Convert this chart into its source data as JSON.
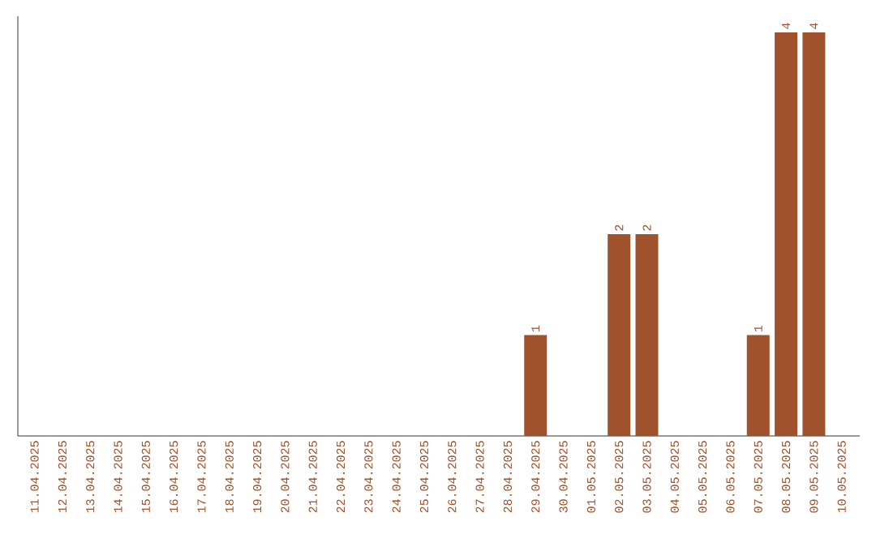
{
  "chart_data": {
    "type": "bar",
    "categories": [
      "11.04.2025",
      "12.04.2025",
      "13.04.2025",
      "14.04.2025",
      "15.04.2025",
      "16.04.2025",
      "17.04.2025",
      "18.04.2025",
      "19.04.2025",
      "20.04.2025",
      "21.04.2025",
      "22.04.2025",
      "23.04.2025",
      "24.04.2025",
      "25.04.2025",
      "26.04.2025",
      "27.04.2025",
      "28.04.2025",
      "29.04.2025",
      "30.04.2025",
      "01.05.2025",
      "02.05.2025",
      "03.05.2025",
      "04.05.2025",
      "05.05.2025",
      "06.05.2025",
      "07.05.2025",
      "08.05.2025",
      "09.05.2025",
      "10.05.2025"
    ],
    "values": [
      null,
      null,
      null,
      null,
      null,
      null,
      null,
      null,
      null,
      null,
      null,
      null,
      null,
      null,
      null,
      null,
      null,
      null,
      1,
      null,
      null,
      2,
      2,
      null,
      null,
      null,
      1,
      4,
      4,
      null
    ],
    "data_labels": true,
    "color": "#a0522d",
    "grid": false,
    "legend": false
  }
}
